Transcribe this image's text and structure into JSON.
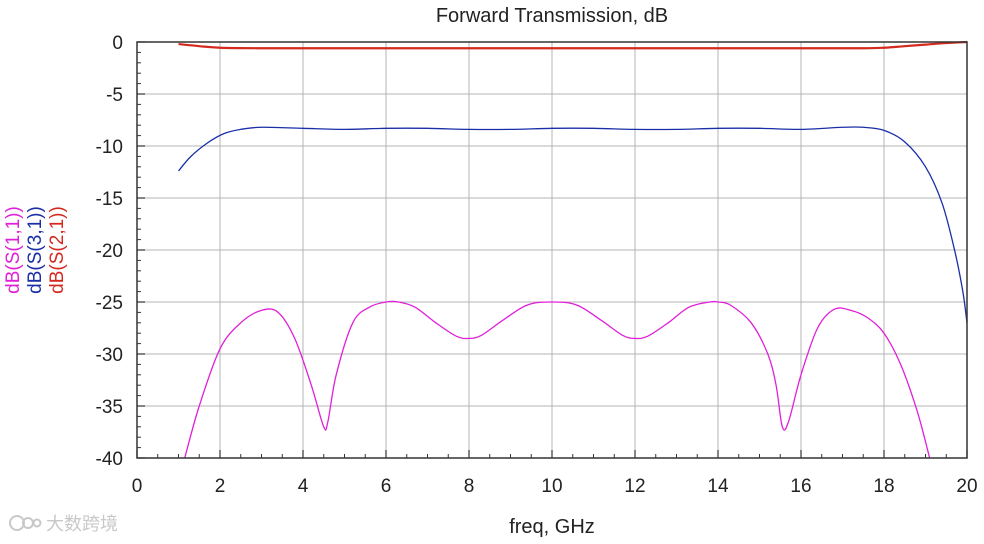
{
  "chart_data": {
    "type": "line",
    "title": "Forward Transmission, dB",
    "xlabel": "freq, GHz",
    "ylabel": "",
    "xlim": [
      0,
      20
    ],
    "ylim": [
      -40,
      0
    ],
    "x_ticks": [
      0,
      2,
      4,
      6,
      8,
      10,
      12,
      14,
      16,
      18,
      20
    ],
    "y_ticks": [
      0,
      -5,
      -10,
      -15,
      -20,
      -25,
      -30,
      -35,
      -40
    ],
    "grid": true,
    "legend_position": "left, rotated vertical",
    "series": [
      {
        "name": "dB(S(1,1))",
        "color": "#e020d8",
        "x": [
          1.15,
          1.5,
          2.0,
          2.5,
          3.0,
          3.4,
          3.8,
          4.2,
          4.5,
          4.6,
          4.8,
          5.2,
          5.6,
          6.0,
          6.3,
          6.7,
          7.2,
          7.7,
          8.0,
          8.3,
          8.8,
          9.4,
          10.0,
          10.6,
          11.2,
          11.7,
          12.0,
          12.3,
          12.8,
          13.3,
          13.8,
          14.0,
          14.3,
          14.8,
          15.2,
          15.4,
          15.55,
          15.7,
          16.0,
          16.4,
          16.8,
          17.2,
          17.6,
          18.0,
          18.4,
          18.8,
          19.1
        ],
        "values": [
          -40.0,
          -35.0,
          -29.5,
          -27.0,
          -25.8,
          -26.0,
          -28.5,
          -33.0,
          -37.0,
          -36.5,
          -32.0,
          -27.0,
          -25.5,
          -25.0,
          -25.0,
          -25.5,
          -27.0,
          -28.3,
          -28.5,
          -28.2,
          -26.8,
          -25.3,
          -25.0,
          -25.3,
          -26.8,
          -28.2,
          -28.5,
          -28.3,
          -27.0,
          -25.5,
          -25.0,
          -25.0,
          -25.3,
          -27.0,
          -30.0,
          -33.0,
          -37.0,
          -36.5,
          -32.0,
          -27.5,
          -25.7,
          -25.8,
          -26.5,
          -28.0,
          -31.0,
          -35.5,
          -40.0
        ]
      },
      {
        "name": "dB(S(3,1))",
        "color": "#1a2ea8",
        "x": [
          1.0,
          1.3,
          1.7,
          2.1,
          2.5,
          3.0,
          4.0,
          5.0,
          6.0,
          7.0,
          8.0,
          9.0,
          10.0,
          11.0,
          12.0,
          13.0,
          14.0,
          15.0,
          16.0,
          17.0,
          17.5,
          18.0,
          18.5,
          19.0,
          19.4,
          19.7,
          19.9,
          20.0
        ],
        "values": [
          -12.4,
          -11.0,
          -9.7,
          -8.8,
          -8.4,
          -8.2,
          -8.3,
          -8.4,
          -8.3,
          -8.3,
          -8.4,
          -8.4,
          -8.3,
          -8.3,
          -8.4,
          -8.4,
          -8.3,
          -8.3,
          -8.4,
          -8.2,
          -8.2,
          -8.5,
          -9.6,
          -12.0,
          -15.5,
          -20.0,
          -24.0,
          -27.0
        ]
      },
      {
        "name": "dB(S(2,1))",
        "color": "#d42a1e",
        "x": [
          1.0,
          1.5,
          2.0,
          3.0,
          4.0,
          6.0,
          8.0,
          10.0,
          12.0,
          14.0,
          16.0,
          17.5,
          18.0,
          18.5,
          19.0,
          19.5,
          20.0
        ],
        "values": [
          -0.2,
          -0.4,
          -0.55,
          -0.6,
          -0.6,
          -0.6,
          -0.6,
          -0.6,
          -0.6,
          -0.6,
          -0.6,
          -0.6,
          -0.55,
          -0.4,
          -0.25,
          -0.1,
          0.0
        ]
      }
    ]
  },
  "watermark": {
    "text": "大数跨境"
  }
}
